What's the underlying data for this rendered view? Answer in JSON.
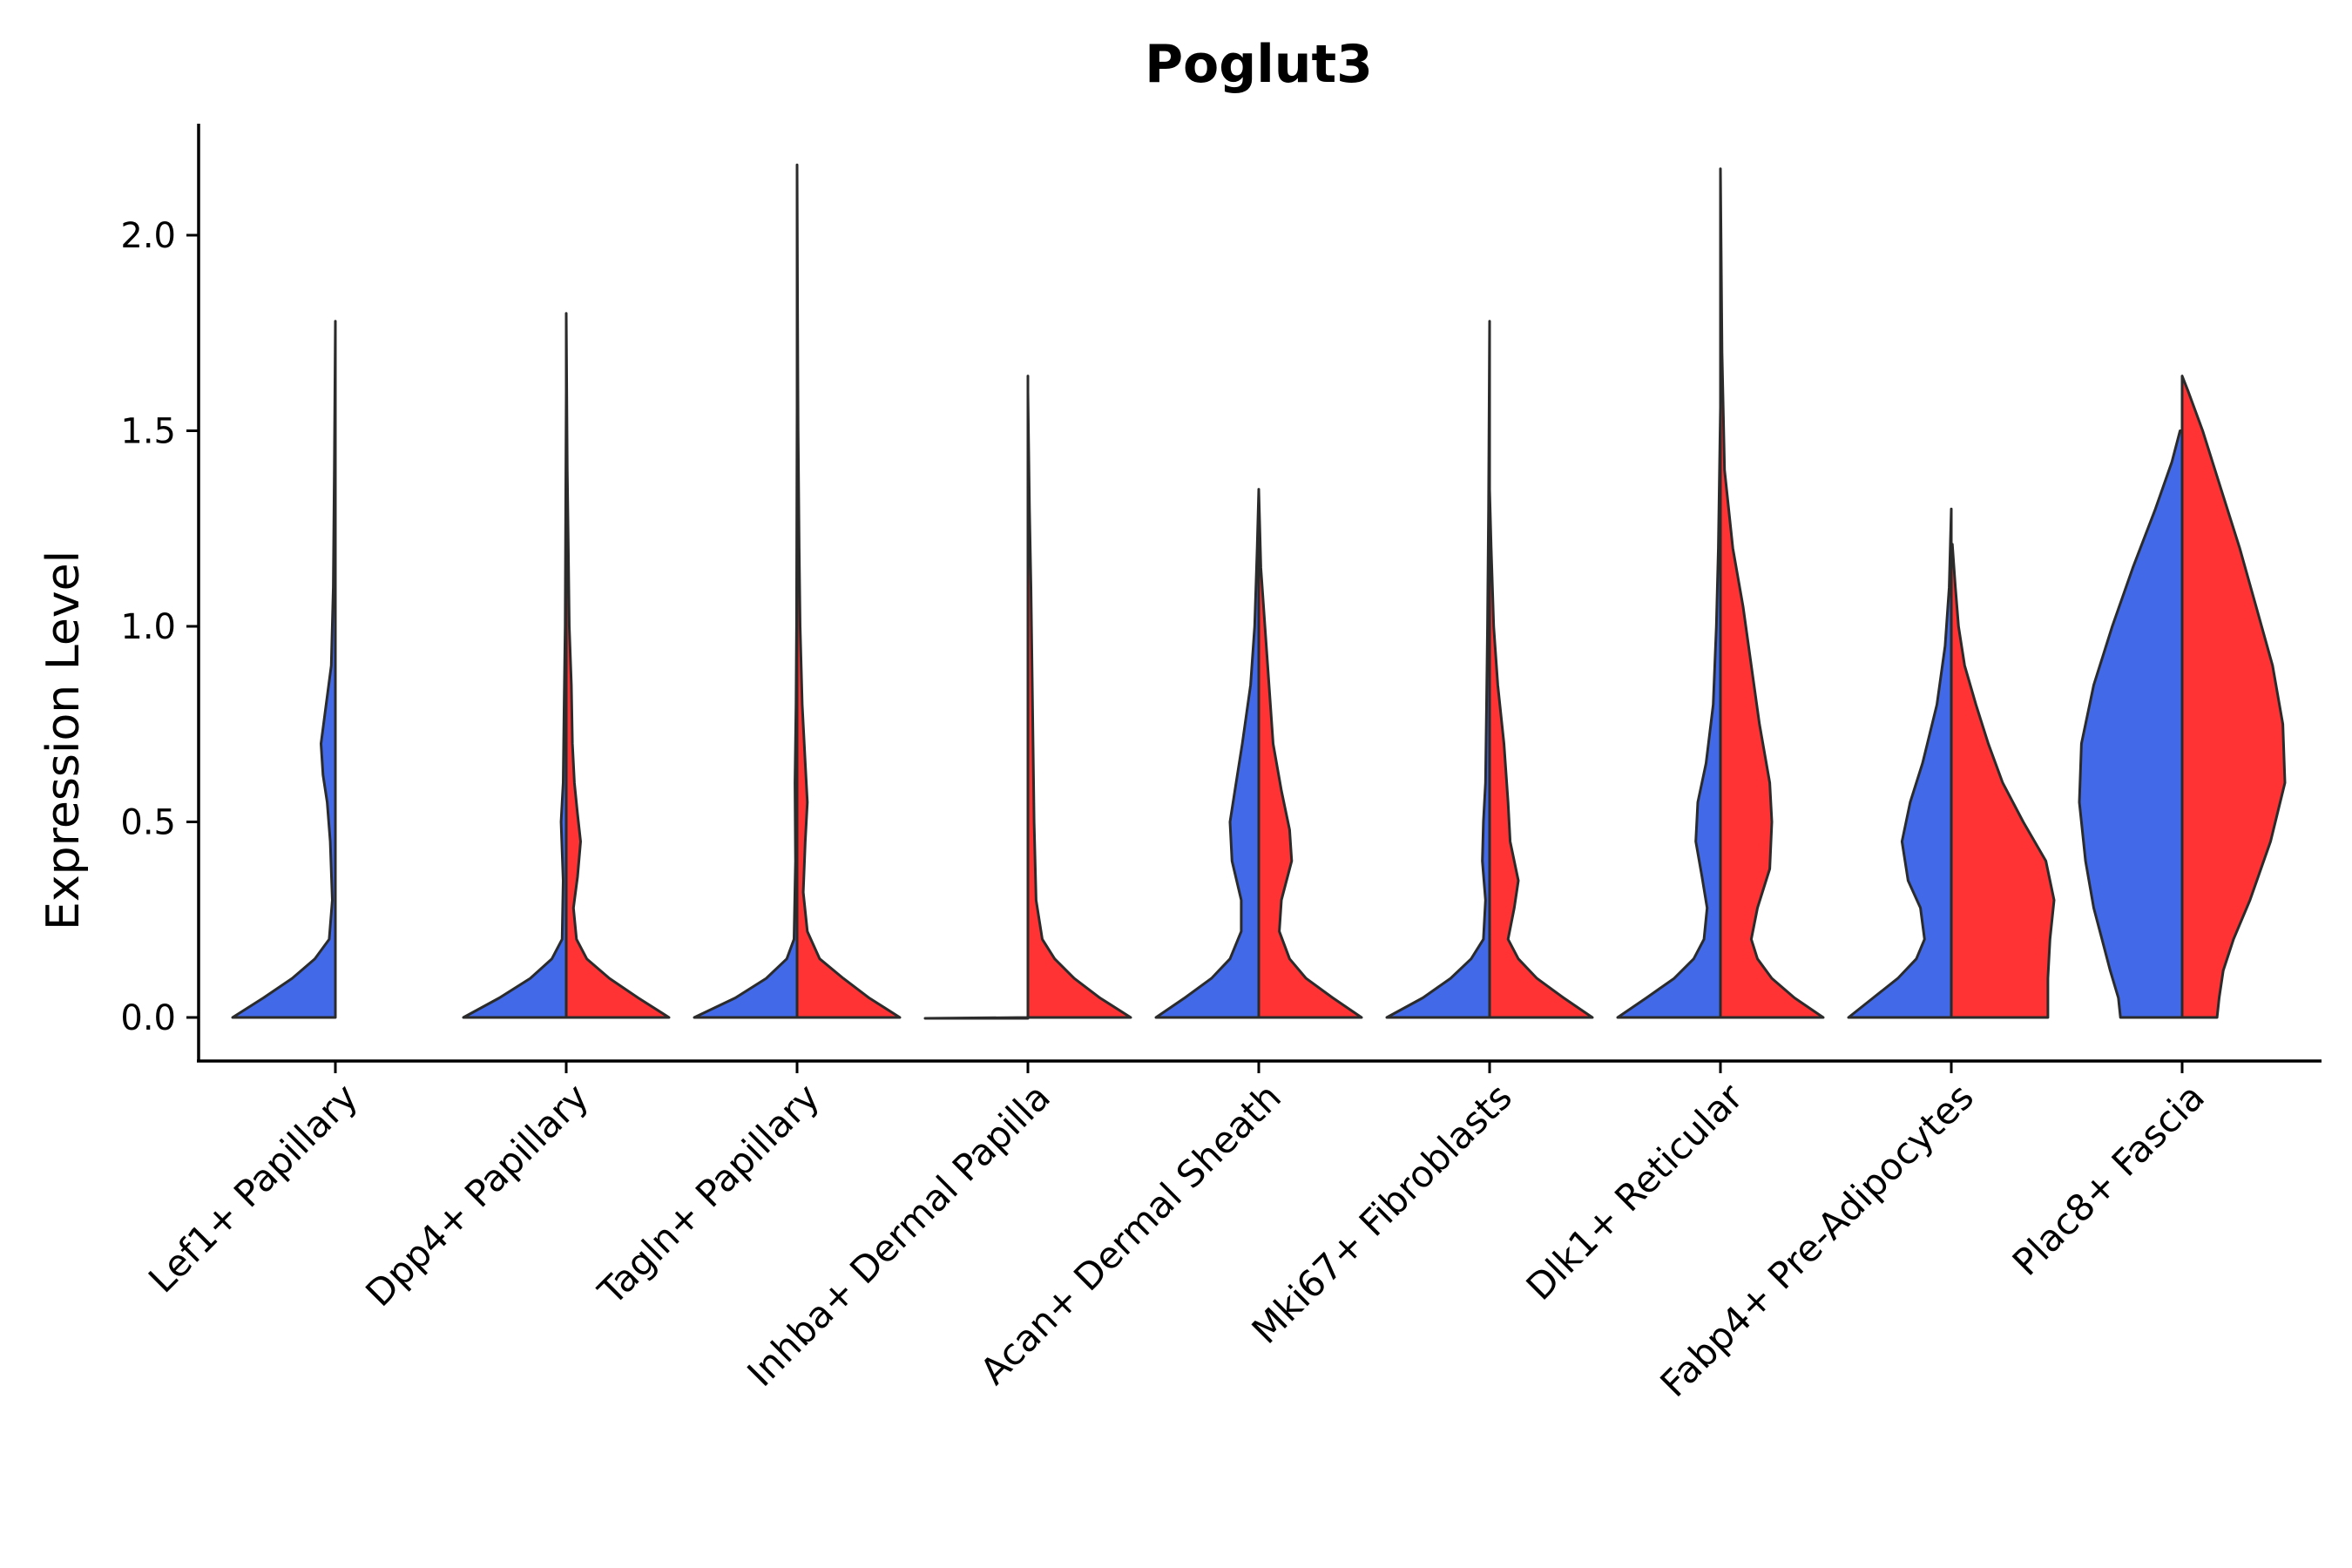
{
  "chart_data": {
    "type": "violin",
    "title": "Poglut3",
    "xlabel": "",
    "ylabel": "Expression Level",
    "ylim": [
      -0.11,
      2.3
    ],
    "yticks": [
      "0.0",
      "0.5",
      "1.0",
      "1.5",
      "2.0"
    ],
    "ytick_values": [
      0,
      0.5,
      1.0,
      1.5,
      2.0
    ],
    "grid": false,
    "colors": {
      "blue": "#4169E8",
      "red": "#FF3333"
    },
    "categories": [
      "Lef1+ Papillary",
      "Dpp4+ Papillary",
      "Tagln+ Papillary",
      "Inhba+ Dermal Papilla",
      "Acan+ Dermal Sheath",
      "Mki67+ Fibroblasts",
      "Dlk1+ Reticular",
      "Fabp4+ Pre-Adipocytes",
      "Plac8+ Fascia"
    ],
    "violins": [
      {
        "category": 0,
        "side": "left",
        "color": "blue",
        "max": 1.78,
        "profile": [
          [
            0,
            1.0
          ],
          [
            0.05,
            0.7
          ],
          [
            0.1,
            0.42
          ],
          [
            0.15,
            0.2
          ],
          [
            0.2,
            0.06
          ],
          [
            0.3,
            0.03
          ],
          [
            0.45,
            0.05
          ],
          [
            0.55,
            0.08
          ],
          [
            0.62,
            0.12
          ],
          [
            0.7,
            0.14
          ],
          [
            0.78,
            0.1
          ],
          [
            0.9,
            0.04
          ],
          [
            1.1,
            0.02
          ],
          [
            1.4,
            0.01
          ],
          [
            1.78,
            0.0
          ]
        ]
      },
      {
        "category": 1,
        "side": "left",
        "color": "blue",
        "max": 1.6,
        "profile": [
          [
            0,
            1.0
          ],
          [
            0.05,
            0.65
          ],
          [
            0.1,
            0.35
          ],
          [
            0.15,
            0.14
          ],
          [
            0.2,
            0.04
          ],
          [
            0.35,
            0.03
          ],
          [
            0.5,
            0.05
          ],
          [
            0.6,
            0.03
          ],
          [
            0.8,
            0.02
          ],
          [
            1.0,
            0.01
          ],
          [
            1.3,
            0.005
          ],
          [
            1.6,
            0.0
          ]
        ]
      },
      {
        "category": 1,
        "side": "right",
        "color": "red",
        "max": 1.8,
        "profile": [
          [
            0,
            1.0
          ],
          [
            0.05,
            0.7
          ],
          [
            0.1,
            0.42
          ],
          [
            0.15,
            0.2
          ],
          [
            0.2,
            0.1
          ],
          [
            0.28,
            0.07
          ],
          [
            0.36,
            0.11
          ],
          [
            0.45,
            0.14
          ],
          [
            0.52,
            0.11
          ],
          [
            0.6,
            0.08
          ],
          [
            0.7,
            0.06
          ],
          [
            0.85,
            0.05
          ],
          [
            1.0,
            0.03
          ],
          [
            1.2,
            0.02
          ],
          [
            1.4,
            0.01
          ],
          [
            1.8,
            0.0
          ]
        ]
      },
      {
        "category": 2,
        "side": "left",
        "color": "blue",
        "max": 1.56,
        "profile": [
          [
            0,
            1.0
          ],
          [
            0.05,
            0.6
          ],
          [
            0.1,
            0.3
          ],
          [
            0.15,
            0.1
          ],
          [
            0.2,
            0.03
          ],
          [
            0.4,
            0.015
          ],
          [
            0.6,
            0.02
          ],
          [
            0.8,
            0.01
          ],
          [
            1.0,
            0.005
          ],
          [
            1.56,
            0.0
          ]
        ]
      },
      {
        "category": 2,
        "side": "right",
        "color": "red",
        "max": 2.18,
        "profile": [
          [
            0,
            1.0
          ],
          [
            0.05,
            0.7
          ],
          [
            0.1,
            0.45
          ],
          [
            0.15,
            0.22
          ],
          [
            0.22,
            0.1
          ],
          [
            0.32,
            0.06
          ],
          [
            0.45,
            0.08
          ],
          [
            0.55,
            0.1
          ],
          [
            0.65,
            0.08
          ],
          [
            0.8,
            0.05
          ],
          [
            1.0,
            0.03
          ],
          [
            1.2,
            0.02
          ],
          [
            1.5,
            0.01
          ],
          [
            1.8,
            0.005
          ],
          [
            2.18,
            0.0
          ]
        ]
      },
      {
        "category": 3,
        "side": "left",
        "color": "blue",
        "max": 1.64,
        "profile": [
          [
            0,
            0.0
          ],
          [
            0.003,
            0.0
          ],
          [
            0.5,
            0.0
          ],
          [
            1.64,
            0.0
          ]
        ],
        "flat": true
      },
      {
        "category": 3,
        "side": "right",
        "color": "red",
        "max": 1.6,
        "profile": [
          [
            0,
            1.0
          ],
          [
            0.05,
            0.7
          ],
          [
            0.1,
            0.45
          ],
          [
            0.15,
            0.26
          ],
          [
            0.2,
            0.14
          ],
          [
            0.3,
            0.08
          ],
          [
            0.5,
            0.06
          ],
          [
            0.7,
            0.05
          ],
          [
            0.9,
            0.04
          ],
          [
            1.1,
            0.03
          ],
          [
            1.3,
            0.015
          ],
          [
            1.6,
            0.0
          ]
        ]
      },
      {
        "category": 4,
        "side": "left",
        "color": "blue",
        "max": 1.35,
        "profile": [
          [
            0,
            1.0
          ],
          [
            0.05,
            0.72
          ],
          [
            0.1,
            0.46
          ],
          [
            0.15,
            0.28
          ],
          [
            0.22,
            0.17
          ],
          [
            0.3,
            0.17
          ],
          [
            0.4,
            0.26
          ],
          [
            0.5,
            0.28
          ],
          [
            0.6,
            0.22
          ],
          [
            0.7,
            0.16
          ],
          [
            0.85,
            0.08
          ],
          [
            1.0,
            0.04
          ],
          [
            1.2,
            0.015
          ],
          [
            1.35,
            0.0
          ]
        ]
      },
      {
        "category": 4,
        "side": "right",
        "color": "red",
        "max": 1.35,
        "profile": [
          [
            0,
            1.0
          ],
          [
            0.05,
            0.72
          ],
          [
            0.1,
            0.46
          ],
          [
            0.15,
            0.3
          ],
          [
            0.22,
            0.2
          ],
          [
            0.3,
            0.22
          ],
          [
            0.4,
            0.32
          ],
          [
            0.48,
            0.3
          ],
          [
            0.58,
            0.22
          ],
          [
            0.7,
            0.14
          ],
          [
            0.85,
            0.1
          ],
          [
            1.0,
            0.06
          ],
          [
            1.15,
            0.02
          ],
          [
            1.35,
            0.0
          ]
        ]
      },
      {
        "category": 5,
        "side": "left",
        "color": "blue",
        "max": 1.78,
        "profile": [
          [
            0,
            1.0
          ],
          [
            0.05,
            0.65
          ],
          [
            0.1,
            0.38
          ],
          [
            0.15,
            0.18
          ],
          [
            0.2,
            0.06
          ],
          [
            0.3,
            0.04
          ],
          [
            0.4,
            0.07
          ],
          [
            0.5,
            0.06
          ],
          [
            0.6,
            0.04
          ],
          [
            0.8,
            0.03
          ],
          [
            1.0,
            0.02
          ],
          [
            1.3,
            0.01
          ],
          [
            1.78,
            0.0
          ]
        ]
      },
      {
        "category": 5,
        "side": "right",
        "color": "red",
        "max": 1.35,
        "profile": [
          [
            0,
            1.0
          ],
          [
            0.05,
            0.72
          ],
          [
            0.1,
            0.46
          ],
          [
            0.15,
            0.28
          ],
          [
            0.2,
            0.18
          ],
          [
            0.28,
            0.24
          ],
          [
            0.35,
            0.28
          ],
          [
            0.45,
            0.2
          ],
          [
            0.55,
            0.18
          ],
          [
            0.7,
            0.14
          ],
          [
            0.85,
            0.08
          ],
          [
            1.0,
            0.04
          ],
          [
            1.2,
            0.015
          ],
          [
            1.35,
            0.0
          ]
        ]
      },
      {
        "category": 6,
        "side": "left",
        "color": "blue",
        "max": 1.56,
        "profile": [
          [
            0,
            1.0
          ],
          [
            0.05,
            0.72
          ],
          [
            0.1,
            0.45
          ],
          [
            0.15,
            0.26
          ],
          [
            0.2,
            0.16
          ],
          [
            0.28,
            0.13
          ],
          [
            0.36,
            0.18
          ],
          [
            0.45,
            0.24
          ],
          [
            0.55,
            0.22
          ],
          [
            0.65,
            0.14
          ],
          [
            0.8,
            0.07
          ],
          [
            1.0,
            0.04
          ],
          [
            1.2,
            0.02
          ],
          [
            1.56,
            0.0
          ]
        ]
      },
      {
        "category": 6,
        "side": "right",
        "color": "red",
        "max": 2.17,
        "profile": [
          [
            0,
            1.0
          ],
          [
            0.05,
            0.72
          ],
          [
            0.1,
            0.5
          ],
          [
            0.15,
            0.36
          ],
          [
            0.2,
            0.3
          ],
          [
            0.28,
            0.36
          ],
          [
            0.38,
            0.48
          ],
          [
            0.5,
            0.5
          ],
          [
            0.6,
            0.48
          ],
          [
            0.75,
            0.38
          ],
          [
            0.9,
            0.3
          ],
          [
            1.05,
            0.22
          ],
          [
            1.2,
            0.12
          ],
          [
            1.4,
            0.04
          ],
          [
            1.7,
            0.015
          ],
          [
            2.17,
            0.0
          ]
        ]
      },
      {
        "category": 7,
        "side": "left",
        "color": "blue",
        "max": 1.3,
        "profile": [
          [
            0,
            1.0
          ],
          [
            0.05,
            0.76
          ],
          [
            0.1,
            0.52
          ],
          [
            0.15,
            0.34
          ],
          [
            0.2,
            0.26
          ],
          [
            0.28,
            0.3
          ],
          [
            0.35,
            0.42
          ],
          [
            0.45,
            0.48
          ],
          [
            0.55,
            0.4
          ],
          [
            0.65,
            0.28
          ],
          [
            0.8,
            0.14
          ],
          [
            0.95,
            0.06
          ],
          [
            1.1,
            0.02
          ],
          [
            1.3,
            0.0
          ]
        ]
      },
      {
        "category": 7,
        "side": "right",
        "color": "red",
        "max": 1.21,
        "profile": [
          [
            0,
            0.94
          ],
          [
            0.02,
            0.94
          ],
          [
            0.1,
            0.94
          ],
          [
            0.2,
            0.96
          ],
          [
            0.3,
            1.0
          ],
          [
            0.4,
            0.92
          ],
          [
            0.5,
            0.7
          ],
          [
            0.6,
            0.5
          ],
          [
            0.7,
            0.36
          ],
          [
            0.8,
            0.24
          ],
          [
            0.9,
            0.13
          ],
          [
            1.0,
            0.07
          ],
          [
            1.1,
            0.04
          ],
          [
            1.21,
            0.01
          ]
        ]
      },
      {
        "category": 8,
        "side": "left",
        "color": "blue",
        "max": 1.5,
        "profile": [
          [
            0,
            0.6
          ],
          [
            0.05,
            0.62
          ],
          [
            0.12,
            0.7
          ],
          [
            0.2,
            0.78
          ],
          [
            0.28,
            0.86
          ],
          [
            0.4,
            0.94
          ],
          [
            0.55,
            1.0
          ],
          [
            0.7,
            0.98
          ],
          [
            0.85,
            0.86
          ],
          [
            1.0,
            0.68
          ],
          [
            1.15,
            0.48
          ],
          [
            1.3,
            0.26
          ],
          [
            1.42,
            0.1
          ],
          [
            1.5,
            0.02
          ]
        ]
      },
      {
        "category": 8,
        "side": "right",
        "color": "red",
        "max": 1.64,
        "profile": [
          [
            0,
            0.34
          ],
          [
            0.05,
            0.36
          ],
          [
            0.12,
            0.4
          ],
          [
            0.2,
            0.5
          ],
          [
            0.3,
            0.66
          ],
          [
            0.45,
            0.86
          ],
          [
            0.6,
            1.0
          ],
          [
            0.75,
            0.98
          ],
          [
            0.9,
            0.88
          ],
          [
            1.05,
            0.72
          ],
          [
            1.2,
            0.56
          ],
          [
            1.35,
            0.38
          ],
          [
            1.5,
            0.2
          ],
          [
            1.6,
            0.06
          ],
          [
            1.64,
            0.0
          ]
        ]
      }
    ]
  }
}
